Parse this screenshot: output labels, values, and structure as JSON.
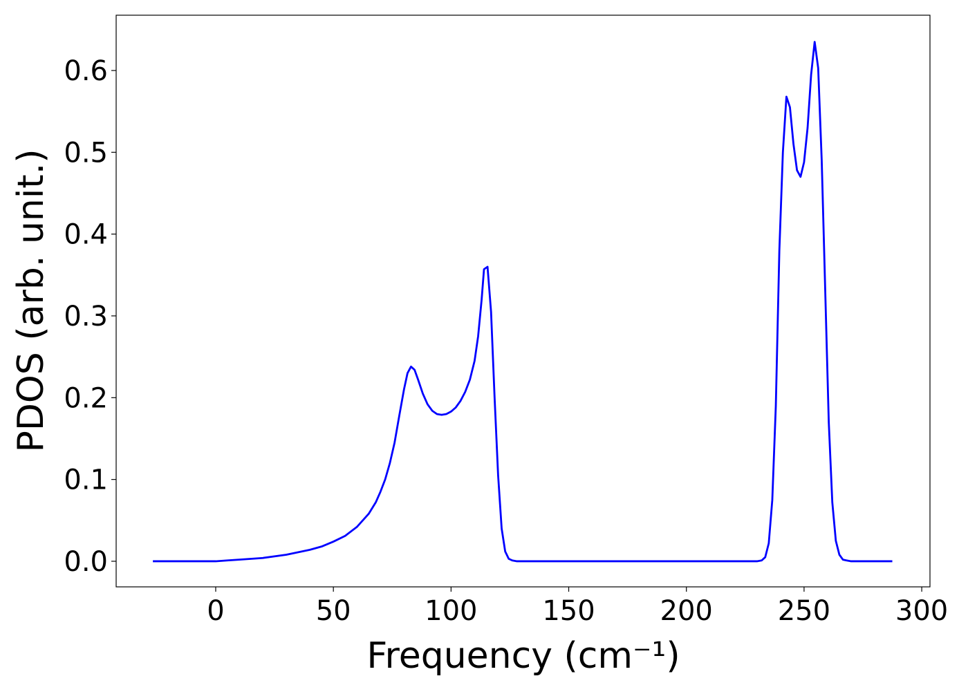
{
  "chart_data": {
    "type": "line",
    "xlabel": "Frequency (cm⁻¹)",
    "ylabel": "PDOS (arb. unit.)",
    "color": "#0000ff",
    "x": [
      -26.7,
      0,
      5,
      10,
      20,
      30,
      40,
      45,
      50,
      55,
      60,
      65,
      68,
      70,
      72,
      74,
      76,
      78,
      80,
      81.5,
      83,
      84.5,
      86,
      88,
      90,
      92,
      94,
      96,
      98,
      100,
      102,
      104,
      106,
      108,
      110,
      111.5,
      113,
      114,
      115.5,
      117,
      118.5,
      120,
      121.5,
      123,
      124.5,
      126,
      128,
      150,
      200,
      230,
      232,
      233.5,
      235,
      236.5,
      238,
      239.5,
      241,
      242.5,
      244,
      245.5,
      247,
      248.5,
      250,
      251.5,
      253,
      254.5,
      256,
      257.5,
      259,
      260.5,
      262,
      263.5,
      265,
      266.5,
      268,
      270,
      287.5
    ],
    "values": [
      0,
      0,
      0.001,
      0.002,
      0.004,
      0.008,
      0.014,
      0.018,
      0.024,
      0.031,
      0.042,
      0.058,
      0.072,
      0.085,
      0.1,
      0.12,
      0.145,
      0.178,
      0.21,
      0.23,
      0.238,
      0.234,
      0.222,
      0.205,
      0.192,
      0.184,
      0.18,
      0.179,
      0.18,
      0.183,
      0.188,
      0.196,
      0.207,
      0.222,
      0.245,
      0.275,
      0.32,
      0.357,
      0.36,
      0.305,
      0.2,
      0.105,
      0.04,
      0.012,
      0.003,
      0.001,
      0,
      0,
      0,
      0,
      0.001,
      0.005,
      0.022,
      0.075,
      0.19,
      0.38,
      0.5,
      0.568,
      0.555,
      0.51,
      0.478,
      0.47,
      0.488,
      0.53,
      0.595,
      0.635,
      0.603,
      0.49,
      0.33,
      0.17,
      0.072,
      0.025,
      0.008,
      0.002,
      0.001,
      0,
      0
    ],
    "xlim": [
      -42.3,
      303.5
    ],
    "ylim": [
      -0.0313,
      0.6676
    ],
    "xticks": [
      0,
      50,
      100,
      150,
      200,
      250,
      300
    ],
    "yticks": [
      {
        "value": 0,
        "label": "0.0"
      },
      0.1,
      0.2,
      0.3,
      0.4,
      0.5,
      0.6
    ],
    "grid": false
  }
}
